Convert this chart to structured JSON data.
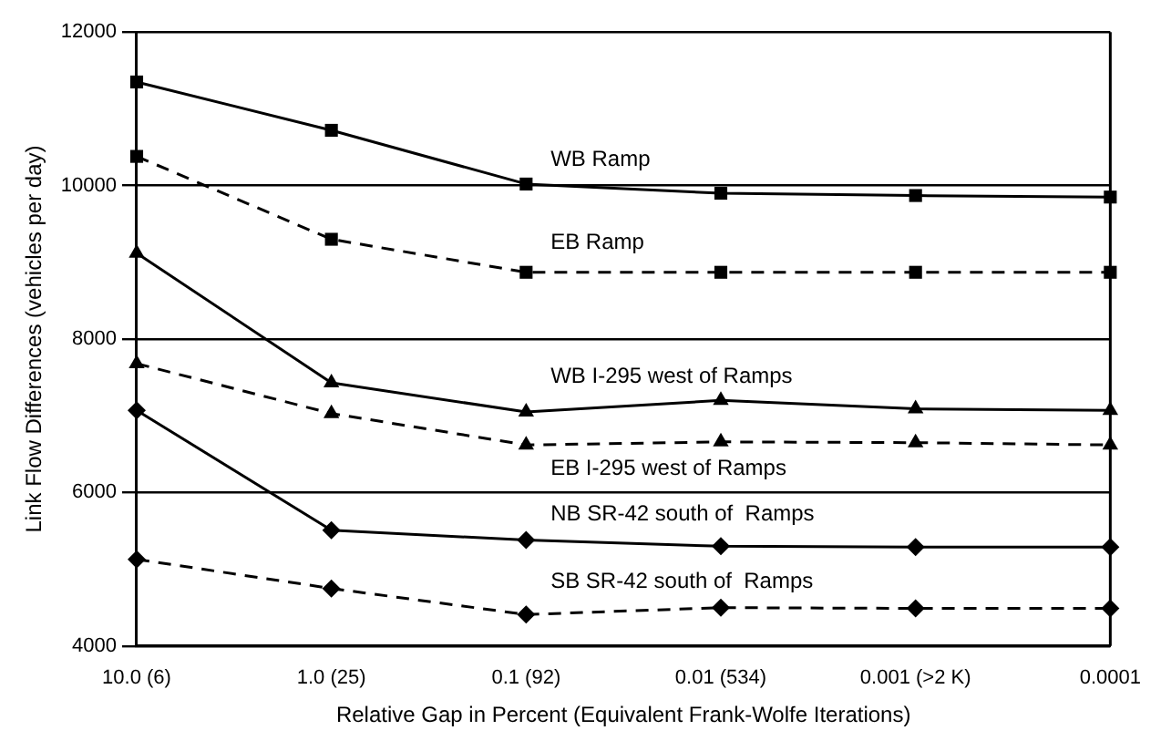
{
  "chart_data": {
    "type": "line",
    "xlabel": "Relative Gap in Percent (Equivalent Frank-Wolfe Iterations)",
    "ylabel": "Link Flow Differences (vehicles per day)",
    "categories": [
      "10.0 (6)",
      "1.0 (25)",
      "0.1 (92)",
      "0.01 (534)",
      "0.001 (>2 K)",
      "0.0001"
    ],
    "ylim": [
      4000,
      12000
    ],
    "yticks": [
      4000,
      6000,
      8000,
      10000,
      12000
    ],
    "grid": "y",
    "legend": false,
    "series": [
      {
        "name": "WB Ramp",
        "color": "#000000",
        "marker": "square",
        "line_style": "solid",
        "values": [
          11350,
          10720,
          10020,
          9900,
          9870,
          9850
        ]
      },
      {
        "name": "EB Ramp",
        "color": "#000000",
        "marker": "square",
        "line_style": "dashed",
        "values": [
          10380,
          9300,
          8870,
          8870,
          8870,
          8870
        ]
      },
      {
        "name": "WB I-295 west of Ramps",
        "color": "#000000",
        "marker": "triangle",
        "line_style": "solid",
        "values": [
          9120,
          7430,
          7050,
          7200,
          7090,
          7070
        ]
      },
      {
        "name": "EB I-295 west of Ramps",
        "color": "#000000",
        "marker": "triangle",
        "line_style": "dashed",
        "values": [
          7680,
          7030,
          6620,
          6660,
          6650,
          6620
        ]
      },
      {
        "name": "NB SR-42 south of  Ramps",
        "color": "#000000",
        "marker": "diamond",
        "line_style": "solid",
        "values": [
          7070,
          5510,
          5380,
          5300,
          5290,
          5290
        ]
      },
      {
        "name": "SB SR-42 south of  Ramps",
        "color": "#000000",
        "marker": "diamond",
        "line_style": "dashed",
        "values": [
          5130,
          4750,
          4410,
          4500,
          4490,
          4490
        ]
      }
    ]
  }
}
